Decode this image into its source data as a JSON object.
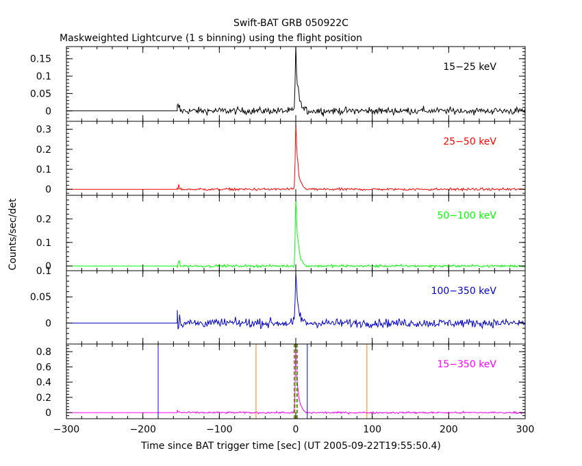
{
  "figure": {
    "title": "Swift-BAT GRB 050922C",
    "subtitle": "Maskweighted Lightcurve (1 s binning) using the flight position",
    "xlabel": "Time since BAT trigger time [sec] (UT 2005-09-22T19:55:50.4)",
    "ylabel": "Counts/sec/det"
  },
  "chart_data": {
    "type": "line",
    "xlim": [
      -300,
      300
    ],
    "x_ticks": [
      -300,
      -200,
      -100,
      0,
      100,
      200,
      300
    ],
    "x_tick_labels": [
      "−300",
      "−200",
      "−100",
      "0",
      "100",
      "200",
      "300"
    ],
    "data_start": -155,
    "data_end": 300,
    "panels": [
      {
        "band": "15−25 keV",
        "color": "#000000",
        "ylim": [
          -0.03,
          0.185
        ],
        "y_ticks": [
          0,
          0.05,
          0.1,
          0.15
        ],
        "y_tick_labels": [
          "0",
          "0.05",
          "0.1",
          "0.15"
        ],
        "peak": 0.185,
        "noise": 0.01,
        "pre_spike": 0.03
      },
      {
        "band": "25−50 keV",
        "color": "#ff0000",
        "ylim": [
          -0.03,
          0.34
        ],
        "y_ticks": [
          0,
          0.1,
          0.2,
          0.3
        ],
        "y_tick_labels": [
          "0",
          "0.1",
          "0.2",
          "0.3"
        ],
        "peak": 0.33,
        "noise": 0.006,
        "pre_spike": 0.04
      },
      {
        "band": "50−100 keV",
        "color": "#00ff00",
        "ylim": [
          -0.02,
          0.3
        ],
        "y_ticks": [
          0,
          0.1,
          0.2
        ],
        "y_tick_labels": [
          "0",
          "0.1",
          "0.2"
        ],
        "peak": 0.29,
        "noise": 0.005,
        "pre_spike": 0.04
      },
      {
        "band": "100−350 keV",
        "color": "#0000cc",
        "ylim": [
          -0.04,
          0.1
        ],
        "y_ticks": [
          0,
          0.05,
          0.1
        ],
        "y_tick_labels": [
          "0",
          "0.05",
          "0.1"
        ],
        "peak": 0.095,
        "noise": 0.008,
        "pre_spike": 0.03
      },
      {
        "band": "15−350 keV",
        "color": "#ff00ff",
        "ylim": [
          -0.08,
          0.9
        ],
        "y_ticks": [
          0,
          0.2,
          0.4,
          0.6,
          0.8
        ],
        "y_tick_labels": [
          "0",
          "0.2",
          "0.4",
          "0.6",
          "0.8"
        ],
        "peak": 0.85,
        "noise": 0.012,
        "pre_spike": 0.08
      }
    ],
    "markers": [
      {
        "x": -180,
        "color": "#0000ff",
        "style": "solid"
      },
      {
        "x": 15,
        "color": "#0000ff",
        "style": "solid"
      },
      {
        "x": -52,
        "color": "#ff8000",
        "style": "solid"
      },
      {
        "x": 93,
        "color": "#ff8000",
        "style": "solid"
      },
      {
        "x": -2,
        "color": "#ff0000",
        "style": "dashed"
      },
      {
        "x": 2,
        "color": "#ff0000",
        "style": "dashed"
      },
      {
        "x": -1,
        "color": "#00cc00",
        "style": "dashed"
      },
      {
        "x": 1,
        "color": "#00cc00",
        "style": "dashed"
      }
    ]
  }
}
